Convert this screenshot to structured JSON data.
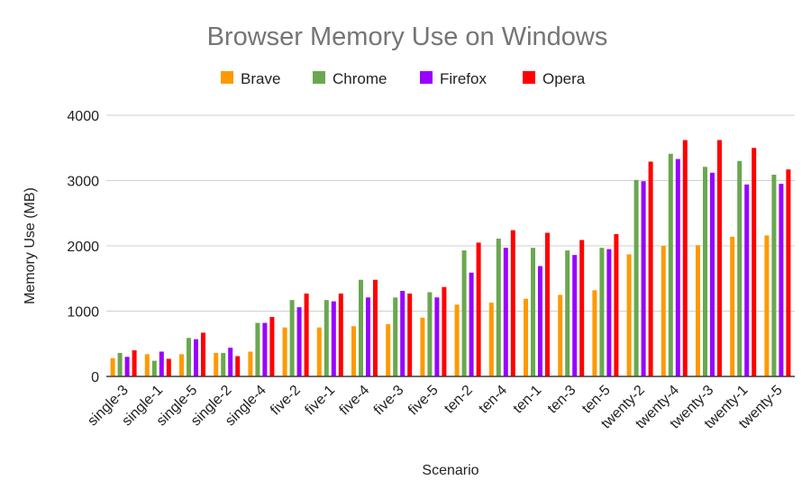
{
  "chart_data": {
    "type": "bar",
    "title": "Browser Memory Use on Windows",
    "xlabel": "Scenario",
    "ylabel": "Memory Use (MB)",
    "ylim": [
      0,
      4000
    ],
    "yticks": [
      0,
      1000,
      2000,
      3000,
      4000
    ],
    "grid": true,
    "legend_position": "top",
    "categories": [
      "single-3",
      "single-1",
      "single-5",
      "single-2",
      "single-4",
      "five-2",
      "five-1",
      "five-4",
      "five-3",
      "five-5",
      "ten-2",
      "ten-4",
      "ten-1",
      "ten-3",
      "ten-5",
      "twenty-2",
      "twenty-4",
      "twenty-3",
      "twenty-1",
      "twenty-5"
    ],
    "series": [
      {
        "name": "Brave",
        "color": "#ff9900",
        "values": [
          280,
          340,
          340,
          360,
          380,
          750,
          750,
          770,
          800,
          900,
          1100,
          1130,
          1190,
          1250,
          1320,
          1870,
          2000,
          2010,
          2140,
          2160
        ]
      },
      {
        "name": "Chrome",
        "color": "#6aa84f",
        "values": [
          360,
          240,
          590,
          360,
          820,
          1170,
          1170,
          1480,
          1210,
          1290,
          1930,
          2110,
          1970,
          1930,
          1970,
          3010,
          3410,
          3210,
          3300,
          3090
        ]
      },
      {
        "name": "Firefox",
        "color": "#9900ff",
        "values": [
          300,
          380,
          570,
          440,
          820,
          1060,
          1150,
          1210,
          1310,
          1210,
          1590,
          1970,
          1690,
          1860,
          1950,
          2990,
          3330,
          3120,
          2940,
          2950
        ]
      },
      {
        "name": "Opera",
        "color": "#ff0000",
        "values": [
          400,
          270,
          670,
          310,
          910,
          1270,
          1270,
          1480,
          1270,
          1370,
          2050,
          2240,
          2200,
          2090,
          2180,
          3290,
          3620,
          3620,
          3500,
          3170
        ]
      }
    ]
  }
}
